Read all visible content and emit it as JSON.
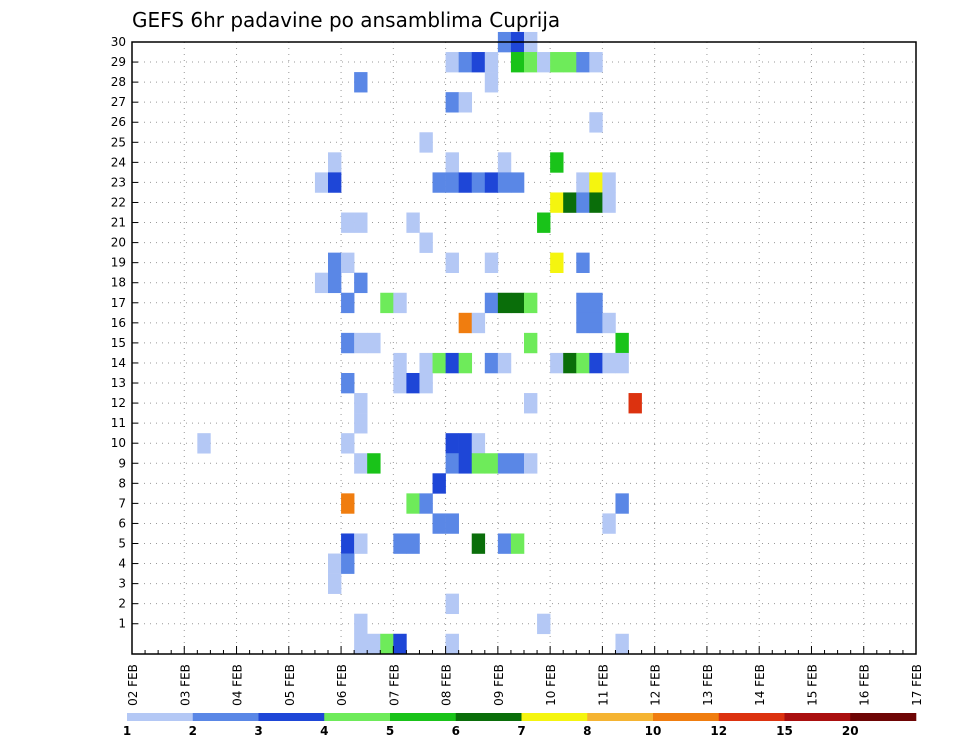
{
  "chart_data": {
    "type": "heatmap",
    "title": "GEFS 6hr padavine po ansamblima Cuprija",
    "xlabel": "",
    "ylabel": "",
    "x_tick_labels": [
      "02 FEB",
      "03 FEB",
      "04 FEB",
      "05 FEB",
      "06 FEB",
      "07 FEB",
      "08 FEB",
      "09 FEB",
      "10 FEB",
      "11 FEB",
      "12 FEB",
      "13 FEB",
      "14 FEB",
      "15 FEB",
      "16 FEB",
      "17 FEB"
    ],
    "y_tick_labels": [
      "1",
      "2",
      "3",
      "4",
      "5",
      "6",
      "7",
      "8",
      "9",
      "10",
      "11",
      "12",
      "13",
      "14",
      "15",
      "16",
      "17",
      "18",
      "19",
      "20",
      "21",
      "22",
      "23",
      "24",
      "25",
      "26",
      "27",
      "28",
      "29",
      "30"
    ],
    "x_step_hours": 6,
    "members_range": [
      0,
      30
    ],
    "grid": true,
    "legend_position": "bottom",
    "legend": {
      "thresholds": [
        "1",
        "2",
        "3",
        "4",
        "5",
        "6",
        "7",
        "8",
        "10",
        "12",
        "15",
        "20"
      ],
      "colors": [
        "#b4c8f5",
        "#5a87e6",
        "#1e46d7",
        "#6eeb5a",
        "#19c319",
        "#0a6e0a",
        "#f5f50f",
        "#f5b432",
        "#f07d0f",
        "#dc320f",
        "#aa0f0f",
        "#6e0505"
      ]
    },
    "cells": [
      [
        28,
        30,
        2
      ],
      [
        29,
        30,
        3
      ],
      [
        30,
        30,
        1
      ],
      [
        24,
        29,
        1
      ],
      [
        25,
        29,
        2
      ],
      [
        26,
        29,
        3
      ],
      [
        27,
        29,
        1
      ],
      [
        29,
        29,
        5
      ],
      [
        30,
        29,
        4
      ],
      [
        31,
        29,
        1
      ],
      [
        32,
        29,
        4
      ],
      [
        33,
        29,
        4
      ],
      [
        34,
        29,
        2
      ],
      [
        35,
        29,
        1
      ],
      [
        17,
        28,
        2
      ],
      [
        27,
        28,
        1
      ],
      [
        24,
        27,
        2
      ],
      [
        25,
        27,
        1
      ],
      [
        35,
        26,
        1
      ],
      [
        22,
        25,
        1
      ],
      [
        15,
        24,
        1
      ],
      [
        24,
        24,
        1
      ],
      [
        28,
        24,
        1
      ],
      [
        32,
        24,
        5
      ],
      [
        14,
        23,
        1
      ],
      [
        15,
        23,
        3
      ],
      [
        23,
        23,
        2
      ],
      [
        24,
        23,
        2
      ],
      [
        25,
        23,
        3
      ],
      [
        26,
        23,
        2
      ],
      [
        27,
        23,
        3
      ],
      [
        28,
        23,
        2
      ],
      [
        29,
        23,
        2
      ],
      [
        34,
        23,
        1
      ],
      [
        35,
        23,
        7
      ],
      [
        36,
        23,
        1
      ],
      [
        32,
        22,
        7
      ],
      [
        33,
        22,
        6
      ],
      [
        34,
        22,
        2
      ],
      [
        35,
        22,
        6
      ],
      [
        36,
        22,
        1
      ],
      [
        16,
        21,
        1
      ],
      [
        17,
        21,
        1
      ],
      [
        21,
        21,
        1
      ],
      [
        31,
        21,
        5
      ],
      [
        22,
        20,
        1
      ],
      [
        15,
        19,
        2
      ],
      [
        16,
        19,
        1
      ],
      [
        24,
        19,
        1
      ],
      [
        27,
        19,
        1
      ],
      [
        32,
        19,
        7
      ],
      [
        34,
        19,
        2
      ],
      [
        14,
        18,
        1
      ],
      [
        15,
        18,
        2
      ],
      [
        17,
        18,
        2
      ],
      [
        16,
        17,
        2
      ],
      [
        19,
        17,
        4
      ],
      [
        20,
        17,
        1
      ],
      [
        27,
        17,
        2
      ],
      [
        28,
        17,
        6
      ],
      [
        29,
        17,
        6
      ],
      [
        30,
        17,
        4
      ],
      [
        34,
        17,
        2
      ],
      [
        35,
        17,
        2
      ],
      [
        25,
        16,
        9
      ],
      [
        26,
        16,
        1
      ],
      [
        34,
        16,
        2
      ],
      [
        35,
        16,
        2
      ],
      [
        36,
        16,
        1
      ],
      [
        16,
        15,
        2
      ],
      [
        17,
        15,
        1
      ],
      [
        18,
        15,
        1
      ],
      [
        30,
        15,
        4
      ],
      [
        37,
        15,
        5
      ],
      [
        20,
        14,
        1
      ],
      [
        22,
        14,
        1
      ],
      [
        23,
        14,
        4
      ],
      [
        24,
        14,
        3
      ],
      [
        25,
        14,
        4
      ],
      [
        27,
        14,
        2
      ],
      [
        28,
        14,
        1
      ],
      [
        32,
        14,
        1
      ],
      [
        33,
        14,
        6
      ],
      [
        34,
        14,
        4
      ],
      [
        35,
        14,
        3
      ],
      [
        36,
        14,
        1
      ],
      [
        37,
        14,
        1
      ],
      [
        16,
        13,
        2
      ],
      [
        20,
        13,
        1
      ],
      [
        21,
        13,
        3
      ],
      [
        22,
        13,
        1
      ],
      [
        17,
        12,
        1
      ],
      [
        30,
        12,
        1
      ],
      [
        38,
        12,
        10
      ],
      [
        17,
        11,
        1
      ],
      [
        5,
        10,
        1
      ],
      [
        16,
        10,
        1
      ],
      [
        24,
        10,
        3
      ],
      [
        25,
        10,
        3
      ],
      [
        26,
        10,
        1
      ],
      [
        17,
        9,
        1
      ],
      [
        18,
        9,
        5
      ],
      [
        24,
        9,
        2
      ],
      [
        25,
        9,
        3
      ],
      [
        26,
        9,
        4
      ],
      [
        27,
        9,
        4
      ],
      [
        28,
        9,
        2
      ],
      [
        29,
        9,
        2
      ],
      [
        30,
        9,
        1
      ],
      [
        23,
        8,
        3
      ],
      [
        16,
        7,
        9
      ],
      [
        21,
        7,
        4
      ],
      [
        22,
        7,
        2
      ],
      [
        37,
        7,
        2
      ],
      [
        23,
        6,
        2
      ],
      [
        24,
        6,
        2
      ],
      [
        36,
        6,
        1
      ],
      [
        16,
        5,
        3
      ],
      [
        17,
        5,
        1
      ],
      [
        20,
        5,
        2
      ],
      [
        21,
        5,
        2
      ],
      [
        26,
        5,
        6
      ],
      [
        28,
        5,
        2
      ],
      [
        29,
        5,
        4
      ],
      [
        15,
        4,
        1
      ],
      [
        16,
        4,
        2
      ],
      [
        15,
        3,
        1
      ],
      [
        24,
        2,
        1
      ],
      [
        17,
        1,
        1
      ],
      [
        31,
        1,
        1
      ],
      [
        17,
        0,
        1
      ],
      [
        18,
        0,
        1
      ],
      [
        19,
        0,
        4
      ],
      [
        20,
        0,
        3
      ],
      [
        24,
        0,
        1
      ],
      [
        37,
        0,
        1
      ]
    ]
  }
}
